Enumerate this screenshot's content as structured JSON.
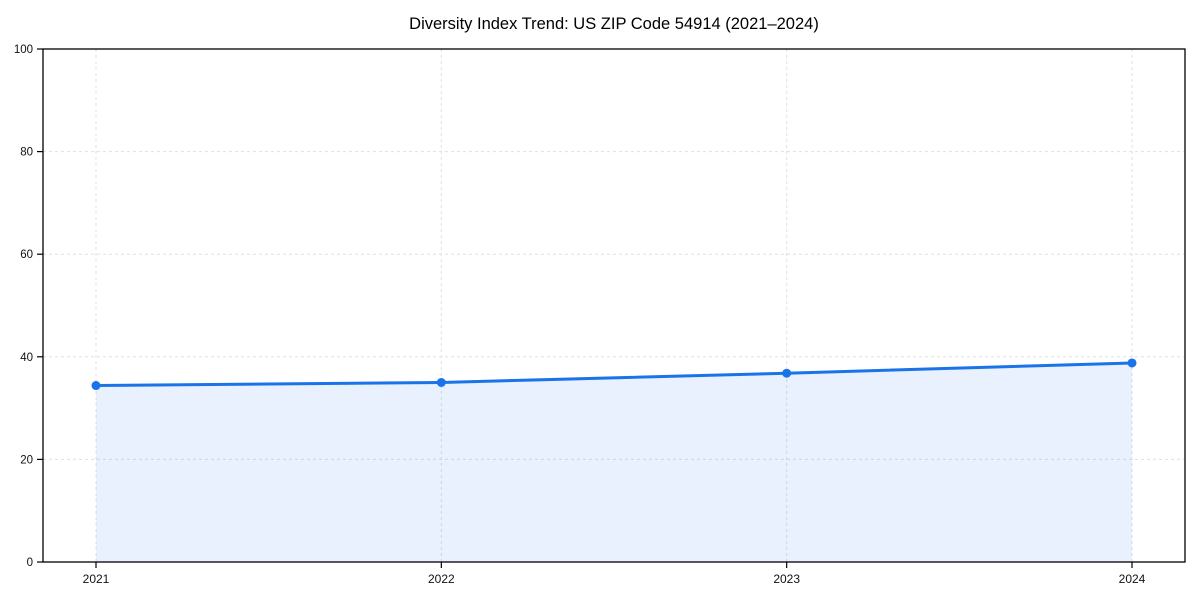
{
  "page": {
    "background": "#ffffff"
  },
  "chart_data": {
    "type": "area",
    "title": "Diversity Index Trend: US ZIP Code 54914 (2021–2024)",
    "categories": [
      "2021",
      "2022",
      "2023",
      "2024"
    ],
    "series": [
      {
        "name": "Diversity Index",
        "values": [
          34.4,
          35.0,
          36.8,
          38.8
        ]
      }
    ],
    "xlabel": "",
    "ylabel": "",
    "ylim": [
      0,
      100
    ],
    "yticks": [
      0,
      20,
      40,
      60,
      80,
      100
    ],
    "grid": true,
    "grid_style": "dashed",
    "legend": false,
    "marker": "circle",
    "colors": {
      "line": "#1a73e8",
      "fill": "#1a73e8",
      "fill_opacity": "0.10",
      "grid": "#e0e0e0",
      "axis": "#000000",
      "text": "#111111"
    }
  }
}
